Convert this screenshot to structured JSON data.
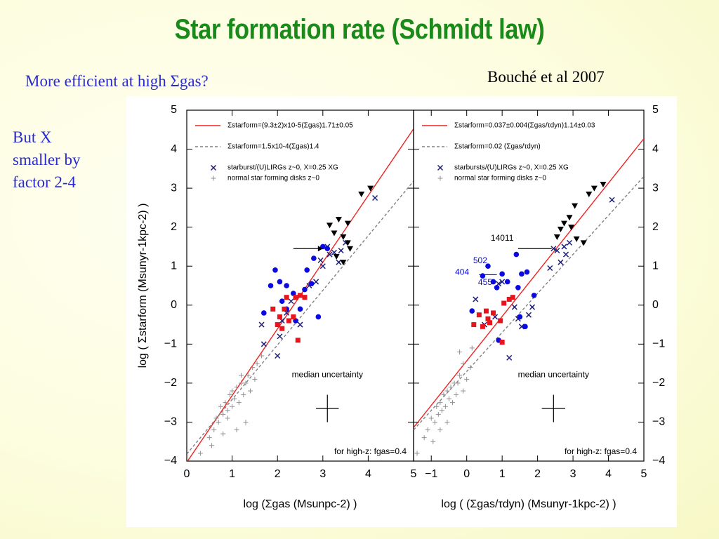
{
  "slide": {
    "title": "Star formation rate (Schmidt law)",
    "subtitle": "More efficient at high Σgas?",
    "citation": "Bouché et al 2007",
    "side_note_lines": [
      "But X",
      "smaller by",
      "factor 2-4"
    ]
  },
  "colors": {
    "title": "#1a8a1a",
    "subtitle": "#2a2ad0",
    "fit_red": "#ee2222",
    "fit_dashed": "#808080",
    "starburst": "#1f1f7a",
    "normal_disk": "#909090",
    "hz_blue": "#0a0ae0",
    "hz_red": "#e8141c",
    "hz_black": "#000000"
  },
  "chart_data": [
    {
      "type": "scatter",
      "panel": "left",
      "xlabel": "log (Σgas (Msunpc-2) )",
      "ylabel": "log ( Σstarform (Msunyr-1kpc-2) )",
      "xlim": [
        0,
        5
      ],
      "ylim": [
        -4,
        5
      ],
      "x_ticks": [
        0,
        1,
        2,
        3,
        4,
        5
      ],
      "y_ticks": [
        -4,
        -3,
        -2,
        -1,
        0,
        1,
        2,
        3,
        4,
        5
      ],
      "legend": {
        "red_fit": "Σstarform=(9.3±2)x10-5(Σgas)1.71±0.05",
        "dashed_fit": "Σstarform=1.5x10-4(Σgas)1.4",
        "starburst": "starburst/(U)LIRGs z~0, X=0.25 XG",
        "normal": "normal star forming disks z~0"
      },
      "lines": [
        {
          "name": "red_fit",
          "slope": 1.71,
          "intercept": -4.03
        },
        {
          "name": "dashed_fit",
          "slope": 1.4,
          "intercept": -3.82
        }
      ],
      "annotations": {
        "uncertainty_label": "median uncertainty",
        "uncertainty_at": [
          3.1,
          -2.65
        ],
        "uncertainty_hw": [
          0.25,
          0.35
        ],
        "highz_note": "for high-z: fgas=0.4"
      },
      "series": [
        {
          "name": "starburst/(U)LIRGs z~0",
          "marker": "x",
          "points": [
            [
              1.65,
              -0.5
            ],
            [
              1.7,
              -1.0
            ],
            [
              2.0,
              -1.3
            ],
            [
              2.05,
              -0.8
            ],
            [
              2.1,
              -0.4
            ],
            [
              2.2,
              -0.2
            ],
            [
              2.3,
              0.1
            ],
            [
              2.5,
              -0.5
            ],
            [
              2.7,
              0.5
            ],
            [
              2.85,
              0.6
            ],
            [
              3.0,
              1.0
            ],
            [
              3.1,
              1.5
            ],
            [
              3.25,
              1.35
            ],
            [
              3.35,
              1.1
            ],
            [
              3.5,
              1.6
            ],
            [
              2.95,
              1.15
            ],
            [
              3.4,
              1.4
            ],
            [
              4.15,
              2.75
            ],
            [
              3.15,
              1.3
            ]
          ]
        },
        {
          "name": "normal star forming disks z~0",
          "marker": "plus",
          "points": [
            [
              0.3,
              -3.8
            ],
            [
              0.5,
              -3.4
            ],
            [
              0.6,
              -3.2
            ],
            [
              0.65,
              -2.9
            ],
            [
              0.7,
              -3.0
            ],
            [
              0.75,
              -2.6
            ],
            [
              0.8,
              -2.8
            ],
            [
              0.85,
              -2.5
            ],
            [
              0.9,
              -2.7
            ],
            [
              0.95,
              -2.3
            ],
            [
              1.0,
              -2.6
            ],
            [
              1.0,
              -2.2
            ],
            [
              1.05,
              -2.4
            ],
            [
              1.1,
              -2.1
            ],
            [
              1.15,
              -2.5
            ],
            [
              1.2,
              -2.0
            ],
            [
              1.25,
              -2.3
            ],
            [
              1.3,
              -2.0
            ],
            [
              1.35,
              -1.8
            ],
            [
              1.4,
              -2.2
            ],
            [
              1.5,
              -1.9
            ],
            [
              1.55,
              -1.5
            ],
            [
              1.65,
              -1.3
            ],
            [
              1.3,
              -3.0
            ],
            [
              0.9,
              -2.9
            ],
            [
              1.1,
              -3.2
            ],
            [
              0.8,
              -3.3
            ],
            [
              1.2,
              -1.8
            ],
            [
              1.45,
              -1.6
            ],
            [
              0.55,
              -3.6
            ]
          ]
        },
        {
          "name": "high-z (blue)",
          "marker": "dot",
          "points": [
            [
              1.7,
              -0.2
            ],
            [
              1.85,
              0.5
            ],
            [
              1.95,
              0.9
            ],
            [
              2.05,
              0.6
            ],
            [
              2.2,
              0.5
            ],
            [
              2.35,
              0.3
            ],
            [
              2.5,
              -0.1
            ],
            [
              2.6,
              0.4
            ],
            [
              2.75,
              0.55
            ],
            [
              2.8,
              1.2
            ],
            [
              3.0,
              1.5
            ],
            [
              2.65,
              0.9
            ],
            [
              2.9,
              -0.3
            ],
            [
              2.1,
              0.1
            ],
            [
              2.4,
              -0.4
            ],
            [
              3.1,
              1.45
            ],
            [
              2.2,
              -0.1
            ]
          ]
        },
        {
          "name": "high-z (red)",
          "marker": "square",
          "points": [
            [
              1.9,
              -0.1
            ],
            [
              2.0,
              -0.5
            ],
            [
              2.05,
              -0.3
            ],
            [
              2.1,
              -0.6
            ],
            [
              2.15,
              -0.1
            ],
            [
              2.2,
              0.2
            ],
            [
              2.25,
              -0.4
            ],
            [
              2.4,
              0.2
            ],
            [
              2.5,
              0.25
            ],
            [
              2.6,
              0.2
            ],
            [
              2.45,
              -0.9
            ],
            [
              2.35,
              -0.3
            ]
          ]
        },
        {
          "name": "high-z (black)",
          "marker": "triangle",
          "points": [
            [
              3.15,
              2.05
            ],
            [
              3.25,
              1.85
            ],
            [
              3.35,
              2.2
            ],
            [
              3.45,
              1.75
            ],
            [
              3.55,
              2.1
            ],
            [
              3.3,
              1.25
            ],
            [
              3.45,
              1.1
            ],
            [
              3.6,
              1.45
            ],
            [
              3.85,
              2.85
            ],
            [
              4.05,
              3.0
            ],
            [
              3.55,
              1.6
            ]
          ]
        }
      ]
    },
    {
      "type": "scatter",
      "panel": "right",
      "xlabel": "log ( (Σgas/τdyn) (Msunyr-1kpc-2) )",
      "xlim": [
        -1.5,
        5
      ],
      "ylim": [
        -4,
        5
      ],
      "x_ticks": [
        -1,
        0,
        1,
        2,
        3,
        4,
        5
      ],
      "y_ticks": [
        -4,
        -3,
        -2,
        -1,
        0,
        1,
        2,
        3,
        4,
        5
      ],
      "legend": {
        "red_fit": "Σstarform=0.037±0.004(Σgas/τdyn)1.14±0.03",
        "dashed_fit": "Σstarform=0.02 (Σgas/τdyn)",
        "starburst": "starbursts/(U)LIRGs z~0, X=0.25 XG",
        "normal": "normal star forming disks z~0"
      },
      "lines": [
        {
          "name": "red_fit",
          "slope": 1.14,
          "intercept": -1.43
        },
        {
          "name": "dashed_fit",
          "slope": 1.0,
          "intercept": -1.7
        }
      ],
      "annotations": {
        "uncertainty_label": "median uncertainty",
        "uncertainty_at": [
          2.45,
          -2.65
        ],
        "uncertainty_hw": [
          0.33,
          0.35
        ],
        "highz_note": "for high-z: fgas=0.4",
        "source_labels": [
          {
            "text": "14011",
            "x": 1.0,
            "y": 1.65,
            "color": "#000000"
          },
          {
            "text": "502",
            "x": 0.38,
            "y": 1.08,
            "color": "#0a0ae0"
          },
          {
            "text": "404",
            "x": -0.13,
            "y": 0.78,
            "color": "#0a0ae0"
          },
          {
            "text": "455",
            "x": 0.52,
            "y": 0.52,
            "color": "#0a0ae0"
          }
        ]
      },
      "series": [
        {
          "name": "starbursts/(U)LIRGs z~0",
          "marker": "x",
          "points": [
            [
              0.25,
              0.15
            ],
            [
              0.5,
              -0.5
            ],
            [
              0.8,
              -0.3
            ],
            [
              0.9,
              0.55
            ],
            [
              1.0,
              0.6
            ],
            [
              1.35,
              -0.05
            ],
            [
              1.45,
              -0.35
            ],
            [
              1.55,
              -0.55
            ],
            [
              1.75,
              -0.25
            ],
            [
              1.85,
              -0.05
            ],
            [
              2.35,
              0.95
            ],
            [
              2.45,
              1.45
            ],
            [
              2.55,
              1.4
            ],
            [
              2.65,
              1.1
            ],
            [
              2.75,
              1.5
            ],
            [
              2.8,
              1.3
            ],
            [
              2.9,
              1.6
            ],
            [
              4.1,
              2.7
            ],
            [
              1.2,
              -1.35
            ]
          ]
        },
        {
          "name": "normal star forming disks z~0",
          "marker": "plus",
          "points": [
            [
              -1.4,
              -3.8
            ],
            [
              -1.2,
              -3.4
            ],
            [
              -1.1,
              -3.2
            ],
            [
              -1.0,
              -2.9
            ],
            [
              -0.9,
              -3.0
            ],
            [
              -0.85,
              -2.6
            ],
            [
              -0.8,
              -2.8
            ],
            [
              -0.75,
              -2.5
            ],
            [
              -0.7,
              -2.7
            ],
            [
              -0.65,
              -2.3
            ],
            [
              -0.6,
              -2.6
            ],
            [
              -0.55,
              -2.2
            ],
            [
              -0.5,
              -2.4
            ],
            [
              -0.45,
              -2.1
            ],
            [
              -0.4,
              -2.5
            ],
            [
              -0.35,
              -2.0
            ],
            [
              -0.3,
              -2.3
            ],
            [
              -0.25,
              -2.0
            ],
            [
              -0.2,
              -1.8
            ],
            [
              -0.1,
              -2.2
            ],
            [
              0.0,
              -1.9
            ],
            [
              0.1,
              -1.6
            ],
            [
              -0.55,
              -3.0
            ],
            [
              -0.75,
              -3.2
            ],
            [
              -0.95,
              -3.5
            ],
            [
              -0.2,
              -1.2
            ],
            [
              0.15,
              -1.1
            ],
            [
              -0.1,
              -1.5
            ]
          ]
        },
        {
          "name": "high-z (blue)",
          "marker": "dot",
          "points": [
            [
              0.15,
              -0.15
            ],
            [
              0.45,
              0.75
            ],
            [
              0.6,
              1.0
            ],
            [
              0.75,
              0.6
            ],
            [
              0.85,
              0.45
            ],
            [
              1.0,
              0.8
            ],
            [
              1.15,
              0.6
            ],
            [
              1.45,
              0.45
            ],
            [
              1.55,
              0.8
            ],
            [
              1.7,
              0.85
            ],
            [
              1.9,
              0.25
            ],
            [
              1.5,
              -0.3
            ],
            [
              0.9,
              -0.9
            ],
            [
              1.4,
              1.3
            ],
            [
              1.65,
              -0.55
            ]
          ]
        },
        {
          "name": "high-z (red)",
          "marker": "square",
          "points": [
            [
              0.2,
              -0.5
            ],
            [
              0.35,
              -0.25
            ],
            [
              0.45,
              -0.55
            ],
            [
              0.55,
              -0.15
            ],
            [
              0.65,
              -0.45
            ],
            [
              0.75,
              -0.2
            ],
            [
              0.95,
              -0.4
            ],
            [
              1.05,
              0.05
            ],
            [
              1.2,
              0.15
            ],
            [
              1.3,
              0.2
            ],
            [
              1.0,
              -0.95
            ],
            [
              0.6,
              -0.35
            ]
          ]
        },
        {
          "name": "high-z (black)",
          "marker": "triangle",
          "points": [
            [
              2.55,
              1.75
            ],
            [
              2.65,
              1.95
            ],
            [
              2.75,
              2.1
            ],
            [
              2.9,
              2.25
            ],
            [
              2.95,
              2.0
            ],
            [
              3.1,
              1.7
            ],
            [
              3.3,
              1.6
            ],
            [
              3.45,
              2.85
            ],
            [
              3.6,
              3.0
            ],
            [
              3.85,
              3.1
            ],
            [
              3.05,
              2.55
            ]
          ]
        }
      ]
    }
  ]
}
